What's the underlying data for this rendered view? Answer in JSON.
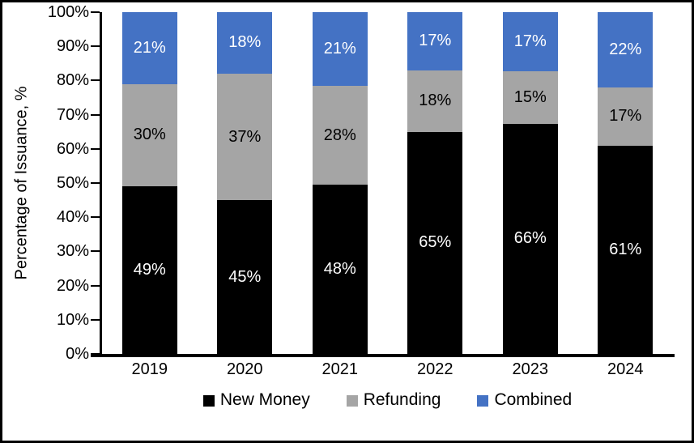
{
  "chart_data": {
    "type": "bar",
    "stacked": true,
    "ylabel": "Percentage of Issuance, %",
    "xlabel": "",
    "categories": [
      "2019",
      "2020",
      "2021",
      "2022",
      "2023",
      "2024"
    ],
    "series": [
      {
        "name": "New Money",
        "color": "#000000",
        "label_color": "#FFFFFF",
        "values": [
          49,
          45,
          48,
          65,
          66,
          61
        ]
      },
      {
        "name": "Refunding",
        "color": "#A5A5A5",
        "label_color": "#000000",
        "values": [
          30,
          37,
          28,
          18,
          15,
          17
        ]
      },
      {
        "name": "Combined",
        "color": "#4472C4",
        "label_color": "#FFFFFF",
        "values": [
          21,
          18,
          21,
          17,
          17,
          22
        ]
      }
    ],
    "value_suffix": "%",
    "ylim": [
      0,
      100
    ],
    "yticks": [
      "0%",
      "10%",
      "20%",
      "30%",
      "40%",
      "50%",
      "60%",
      "70%",
      "80%",
      "90%",
      "100%"
    ],
    "legend_position": "bottom",
    "grid": false
  }
}
